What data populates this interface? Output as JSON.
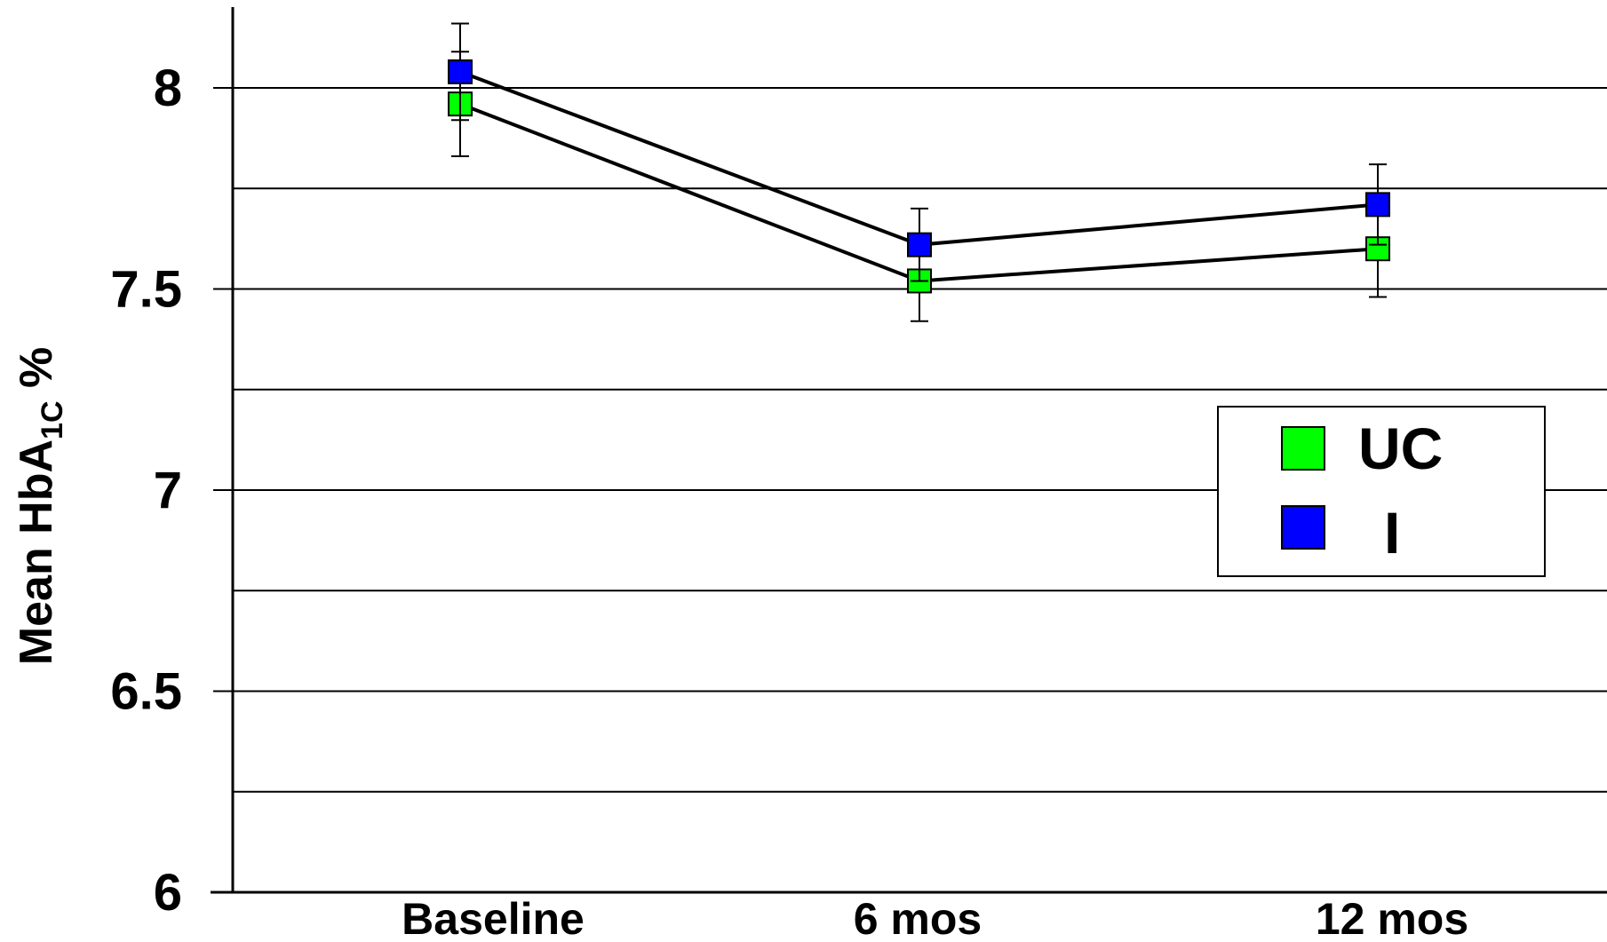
{
  "chart_data": {
    "type": "line",
    "title": "",
    "xlabel": "",
    "ylabel": {
      "prefix": "Mean HbA",
      "subscript": "1C",
      "suffix": " %"
    },
    "categories": [
      "Baseline",
      "6 mos",
      "12 mos"
    ],
    "ylim": [
      6,
      8.2
    ],
    "yticks": [
      6,
      6.5,
      7,
      7.5,
      8
    ],
    "ytick_labels": [
      "6",
      "6.5",
      "7",
      "7.5",
      "8"
    ],
    "gridlines": [
      6.25,
      6.5,
      6.75,
      7,
      7.25,
      7.5,
      7.75,
      8
    ],
    "grid": true,
    "legend_position": "right",
    "series": [
      {
        "name": "UC",
        "color": "#00ff00",
        "values": [
          7.96,
          7.52,
          7.6
        ],
        "error": [
          0.13,
          0.1,
          0.12
        ]
      },
      {
        "name": "I",
        "color": "#0000ff",
        "values": [
          8.04,
          7.61,
          7.71
        ],
        "error": [
          0.12,
          0.09,
          0.1
        ]
      }
    ]
  }
}
